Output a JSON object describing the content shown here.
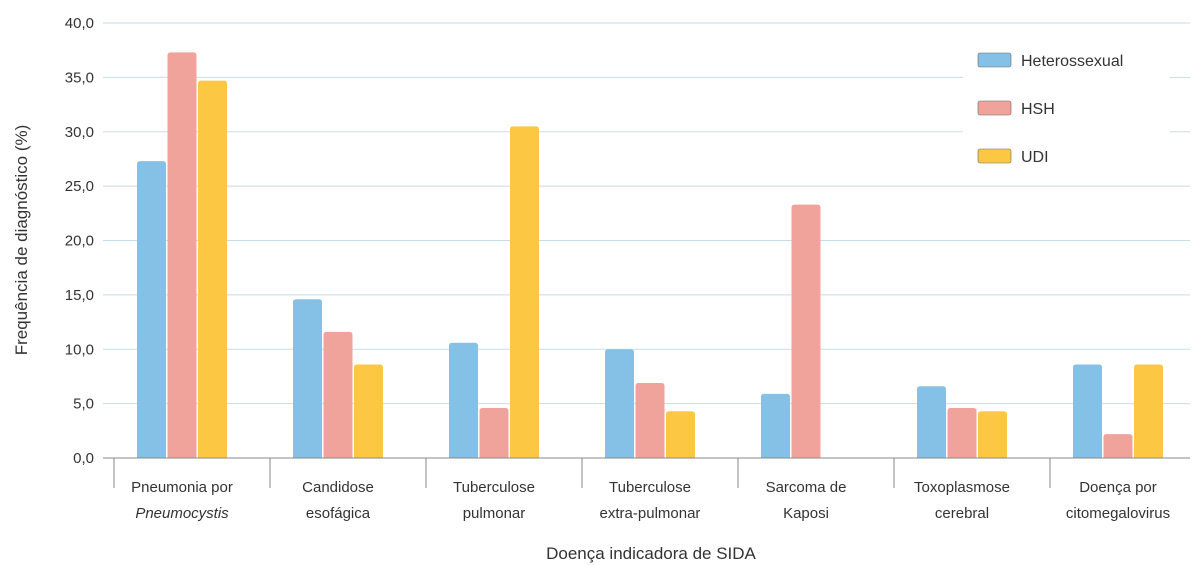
{
  "chart_data": {
    "type": "bar",
    "title": "",
    "xlabel": "Doença indicadora de SIDA",
    "ylabel": "Frequência de diagnóstico (%)",
    "ylim": [
      0,
      40
    ],
    "yticks": [
      "0,0",
      "5,0",
      "10,0",
      "15,0",
      "20,0",
      "25,0",
      "30,0",
      "35,0",
      "40,0"
    ],
    "grid": true,
    "legend_position": "top-right",
    "categories": [
      {
        "line1": "Pneumonia por",
        "line2": "Pneumocystis",
        "italic2": true
      },
      {
        "line1": "Candidose",
        "line2": "esofágica",
        "italic2": false
      },
      {
        "line1": "Tuberculose",
        "line2": "pulmonar",
        "italic2": false
      },
      {
        "line1": "Tuberculose",
        "line2": "extra-pulmonar",
        "italic2": false
      },
      {
        "line1": "Sarcoma de",
        "line2": "Kaposi",
        "italic2": false
      },
      {
        "line1": "Toxoplasmose",
        "line2": "cerebral",
        "italic2": false
      },
      {
        "line1": "Doença por",
        "line2": "citomegalovirus",
        "italic2": false
      }
    ],
    "series": [
      {
        "name": "Heterossexual",
        "color": "#85c1e6",
        "values": [
          27.3,
          14.6,
          10.6,
          10.0,
          5.9,
          6.6,
          8.6
        ]
      },
      {
        "name": "HSH",
        "color": "#f0a39b",
        "values": [
          37.3,
          11.6,
          4.6,
          6.9,
          23.3,
          4.6,
          2.2
        ]
      },
      {
        "name": "UDI",
        "color": "#fcc844",
        "values": [
          34.7,
          8.6,
          30.5,
          4.3,
          0.0,
          4.3,
          8.6
        ]
      }
    ]
  }
}
